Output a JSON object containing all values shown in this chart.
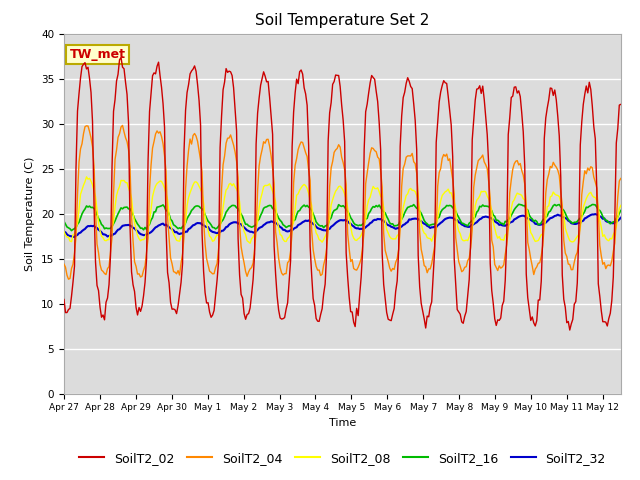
{
  "title": "Soil Temperature Set 2",
  "xlabel": "Time",
  "ylabel": "Soil Temperature (C)",
  "ylim": [
    0,
    40
  ],
  "series": [
    "SoilT2_02",
    "SoilT2_04",
    "SoilT2_08",
    "SoilT2_16",
    "SoilT2_32"
  ],
  "colors": [
    "#cc0000",
    "#ff8800",
    "#ffff00",
    "#00bb00",
    "#0000cc"
  ],
  "annotation": "TW_met",
  "annotation_color": "#cc0000",
  "annotation_bg": "#ffffcc",
  "background_color": "#dcdcdc",
  "grid_color": "#ffffff",
  "tick_labels": [
    "Apr 27",
    "Apr 28",
    "Apr 29",
    "Apr 30",
    "May 1",
    "May 2",
    "May 3",
    "May 4",
    "May 5",
    "May 6",
    "May 7",
    "May 8",
    "May 9",
    "May 10",
    "May 11",
    "May 12"
  ],
  "tick_positions": [
    0,
    1,
    2,
    3,
    4,
    5,
    6,
    7,
    8,
    9,
    10,
    11,
    12,
    13,
    14,
    15
  ],
  "legend_fontsize": 9,
  "title_fontsize": 11
}
